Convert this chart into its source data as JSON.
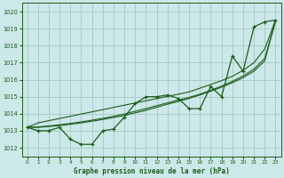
{
  "title": "Graphe pression niveau de la mer (hPa)",
  "bg_color": "#cce8e8",
  "grid_color": "#aacccc",
  "line_color": "#1a5c1a",
  "xlim": [
    -0.5,
    23.5
  ],
  "ylim": [
    1011.5,
    1020.5
  ],
  "yticks": [
    1012,
    1013,
    1014,
    1015,
    1016,
    1017,
    1018,
    1019,
    1020
  ],
  "xticks": [
    0,
    1,
    2,
    3,
    4,
    5,
    6,
    7,
    8,
    9,
    10,
    11,
    12,
    13,
    14,
    15,
    16,
    17,
    18,
    19,
    20,
    21,
    22,
    23
  ],
  "hours": [
    0,
    1,
    2,
    3,
    4,
    5,
    6,
    7,
    8,
    9,
    10,
    11,
    12,
    13,
    14,
    15,
    16,
    17,
    18,
    19,
    20,
    21,
    22,
    23
  ],
  "pressure_main": [
    1013.2,
    1013.0,
    1013.0,
    1013.2,
    1012.5,
    1012.2,
    1012.2,
    1013.0,
    1013.1,
    1013.8,
    1014.6,
    1015.0,
    1015.0,
    1015.1,
    1014.9,
    1014.3,
    1014.3,
    1015.6,
    1015.0,
    1017.4,
    1016.5,
    1019.1,
    1019.4,
    1019.5
  ],
  "pressure_smooth1": [
    1013.2,
    1013.2,
    1013.25,
    1013.3,
    1013.38,
    1013.46,
    1013.56,
    1013.66,
    1013.78,
    1013.9,
    1014.05,
    1014.2,
    1014.38,
    1014.56,
    1014.72,
    1014.9,
    1015.1,
    1015.32,
    1015.56,
    1015.82,
    1016.12,
    1016.5,
    1017.1,
    1019.5
  ],
  "pressure_smooth2": [
    1013.2,
    1013.22,
    1013.28,
    1013.35,
    1013.43,
    1013.52,
    1013.62,
    1013.73,
    1013.85,
    1013.98,
    1014.14,
    1014.3,
    1014.47,
    1014.64,
    1014.8,
    1014.96,
    1015.15,
    1015.38,
    1015.62,
    1015.9,
    1016.22,
    1016.62,
    1017.25,
    1019.4
  ],
  "pressure_linear": [
    1013.2,
    1013.46,
    1013.59,
    1013.72,
    1013.85,
    1013.98,
    1014.11,
    1014.24,
    1014.37,
    1014.5,
    1014.63,
    1014.76,
    1014.89,
    1015.02,
    1015.15,
    1015.28,
    1015.5,
    1015.72,
    1015.94,
    1016.2,
    1016.55,
    1017.0,
    1017.8,
    1019.5
  ]
}
